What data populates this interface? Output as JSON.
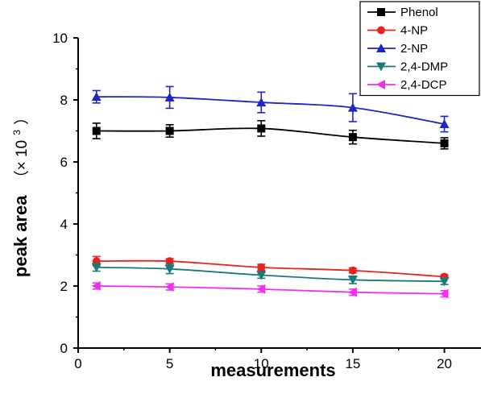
{
  "chart_data": {
    "type": "line",
    "xlabel": "measurements",
    "ylabel": "peak area",
    "ylabel_suffix": "（× 10",
    "ylabel_exponent": "3",
    "ylabel_close": "）",
    "xlim": [
      0,
      22
    ],
    "ylim": [
      0,
      10
    ],
    "xticks": [
      0,
      5,
      10,
      15,
      20
    ],
    "yticks": [
      0,
      2,
      4,
      6,
      8,
      10
    ],
    "grid": false,
    "legend_position": "top-right",
    "x": [
      1,
      5,
      10,
      15,
      20
    ],
    "series": [
      {
        "name": "Phenol",
        "color": "#000000",
        "marker": "square",
        "values": [
          7.0,
          7.0,
          7.08,
          6.8,
          6.6
        ],
        "errors": [
          0.25,
          0.2,
          0.25,
          0.22,
          0.18
        ]
      },
      {
        "name": "4-NP",
        "color": "#e8231f",
        "marker": "circle",
        "values": [
          2.8,
          2.8,
          2.6,
          2.5,
          2.3
        ],
        "errors": [
          0.15,
          0.08,
          0.1,
          0.08,
          0.06
        ]
      },
      {
        "name": "2-NP",
        "color": "#1f24c8",
        "marker": "triangle-up",
        "values": [
          8.1,
          8.08,
          7.92,
          7.75,
          7.22
        ],
        "errors": [
          0.2,
          0.35,
          0.33,
          0.45,
          0.25
        ]
      },
      {
        "name": "2,4-DMP",
        "color": "#1a7a78",
        "marker": "triangle-down",
        "values": [
          2.6,
          2.55,
          2.35,
          2.2,
          2.15
        ],
        "errors": [
          0.12,
          0.15,
          0.1,
          0.12,
          0.1
        ]
      },
      {
        "name": "2,4-DCP",
        "color": "#f030f0",
        "marker": "triangle-left",
        "values": [
          2.0,
          1.97,
          1.9,
          1.8,
          1.75
        ],
        "errors": [
          0.1,
          0.1,
          0.1,
          0.1,
          0.1
        ]
      }
    ]
  }
}
